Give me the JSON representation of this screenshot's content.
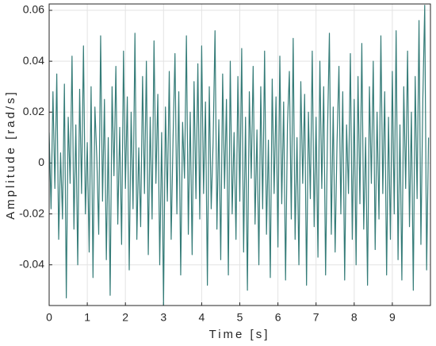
{
  "chart_data": {
    "type": "line",
    "x_label": "Time [s]",
    "y_label": "Amplitude [rad/s]",
    "x": [
      0,
      0.05,
      0.1,
      0.15,
      0.2,
      0.25,
      0.3,
      0.35,
      0.4,
      0.45,
      0.5,
      0.55,
      0.6,
      0.65,
      0.7,
      0.75,
      0.8,
      0.85,
      0.9,
      0.95,
      1,
      1.05,
      1.1,
      1.15,
      1.2,
      1.25,
      1.3,
      1.35,
      1.4,
      1.45,
      1.5,
      1.55,
      1.6,
      1.65,
      1.7,
      1.75,
      1.8,
      1.85,
      1.9,
      1.95,
      2,
      2.05,
      2.1,
      2.15,
      2.2,
      2.25,
      2.3,
      2.35,
      2.4,
      2.45,
      2.5,
      2.55,
      2.6,
      2.65,
      2.7,
      2.75,
      2.8,
      2.85,
      2.9,
      2.95,
      3,
      3.05,
      3.1,
      3.15,
      3.2,
      3.25,
      3.3,
      3.35,
      3.4,
      3.45,
      3.5,
      3.55,
      3.6,
      3.65,
      3.7,
      3.75,
      3.8,
      3.85,
      3.9,
      3.95,
      4,
      4.05,
      4.1,
      4.15,
      4.2,
      4.25,
      4.3,
      4.35,
      4.4,
      4.45,
      4.5,
      4.55,
      4.6,
      4.65,
      4.7,
      4.75,
      4.8,
      4.85,
      4.9,
      4.95,
      5,
      5.05,
      5.1,
      5.15,
      5.2,
      5.25,
      5.3,
      5.35,
      5.4,
      5.45,
      5.5,
      5.55,
      5.6,
      5.65,
      5.7,
      5.75,
      5.8,
      5.85,
      5.9,
      5.95,
      6,
      6.05,
      6.1,
      6.15,
      6.2,
      6.25,
      6.3,
      6.35,
      6.4,
      6.45,
      6.5,
      6.55,
      6.6,
      6.65,
      6.7,
      6.75,
      6.8,
      6.85,
      6.9,
      6.95,
      7,
      7.05,
      7.1,
      7.15,
      7.2,
      7.25,
      7.3,
      7.35,
      7.4,
      7.45,
      7.5,
      7.55,
      7.6,
      7.65,
      7.7,
      7.75,
      7.8,
      7.85,
      7.9,
      7.95,
      8,
      8.05,
      8.1,
      8.15,
      8.2,
      8.25,
      8.3,
      8.35,
      8.4,
      8.45,
      8.5,
      8.55,
      8.6,
      8.65,
      8.7,
      8.75,
      8.8,
      8.85,
      8.9,
      8.95,
      9,
      9.05,
      9.1,
      9.15,
      9.2,
      9.25,
      9.3,
      9.35,
      9.4,
      9.45,
      9.5,
      9.55,
      9.6,
      9.65,
      9.7,
      9.75,
      9.8,
      9.85,
      9.9,
      9.95
    ],
    "series": [
      {
        "color": "#357c78",
        "values": [
          0.012,
          -0.018,
          0.028,
          -0.01,
          0.035,
          -0.03,
          0.004,
          -0.022,
          0.031,
          -0.053,
          0.018,
          -0.008,
          0.042,
          -0.026,
          0.015,
          -0.04,
          0.029,
          -0.012,
          0.046,
          -0.02,
          0.008,
          -0.035,
          0.03,
          -0.045,
          0.022,
          0.002,
          -0.028,
          0.05,
          -0.015,
          0.025,
          -0.038,
          0.01,
          -0.052,
          0.03,
          -0.005,
          0.038,
          -0.024,
          0.014,
          -0.032,
          0.044,
          -0.01,
          0.026,
          -0.042,
          0.02,
          -0.018,
          0.051,
          -0.03,
          0.006,
          -0.025,
          0.034,
          -0.012,
          0.04,
          -0.036,
          0.018,
          -0.022,
          0.048,
          -0.008,
          0.027,
          -0.04,
          0.012,
          -0.056,
          0.022,
          -0.015,
          0.036,
          -0.03,
          0.01,
          0.043,
          -0.02,
          0.028,
          -0.044,
          0.016,
          -0.006,
          0.05,
          -0.028,
          0.02,
          -0.036,
          0.032,
          -0.014,
          0.039,
          -0.022,
          0.046,
          -0.012,
          0.024,
          -0.048,
          0.03,
          -0.018,
          0.008,
          0.052,
          -0.026,
          0.017,
          -0.038,
          0.035,
          -0.01,
          0.025,
          -0.044,
          0.04,
          -0.02,
          0.012,
          -0.03,
          0.034,
          -0.015,
          0.045,
          -0.035,
          0.018,
          -0.05,
          0.028,
          -0.006,
          0.038,
          -0.024,
          0.013,
          -0.04,
          0.03,
          -0.018,
          0.044,
          -0.028,
          0.009,
          -0.045,
          0.033,
          -0.012,
          0.026,
          -0.033,
          0.042,
          -0.016,
          0.024,
          -0.046,
          0.015,
          0.036,
          -0.022,
          0.049,
          -0.03,
          0.01,
          -0.04,
          0.032,
          -0.008,
          0.027,
          -0.048,
          0.02,
          -0.014,
          0.044,
          -0.025,
          0.018,
          -0.037,
          0.04,
          -0.01,
          0.03,
          -0.044,
          0.012,
          0.051,
          -0.028,
          0.022,
          -0.035,
          0.008,
          0.038,
          -0.02,
          0.028,
          -0.046,
          0.015,
          -0.012,
          0.043,
          -0.03,
          0.025,
          -0.04,
          0.034,
          -0.016,
          0.047,
          -0.026,
          0.01,
          -0.048,
          0.03,
          -0.008,
          0.04,
          -0.034,
          0.02,
          -0.022,
          0.05,
          -0.012,
          0.028,
          -0.044,
          0.018,
          -0.03,
          0.036,
          -0.02,
          0.052,
          -0.038,
          0.015,
          -0.046,
          0.03,
          -0.01,
          0.044,
          -0.025,
          0.02,
          -0.05,
          0.034,
          -0.014,
          0.056,
          -0.032,
          0.025,
          0.062,
          -0.042,
          0.01
        ]
      }
    ],
    "xlim": [
      0,
      10
    ],
    "xticks": [
      0,
      1,
      2,
      3,
      4,
      5,
      6,
      7,
      8,
      9
    ],
    "ylim": [
      -0.056,
      0.0625
    ],
    "yticks": [
      -0.04,
      -0.02,
      0,
      0.02,
      0.04,
      0.06
    ],
    "grid": true
  }
}
